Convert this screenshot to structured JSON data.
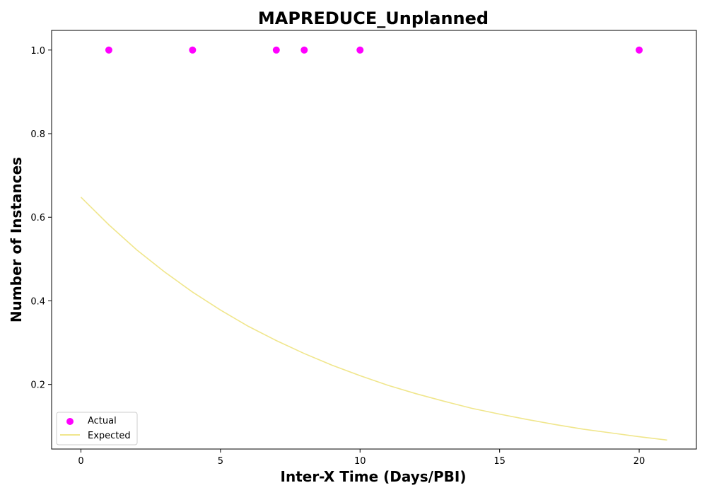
{
  "chart_data": {
    "type": "scatter",
    "title": "MAPREDUCE_Unplanned",
    "xlabel": "Inter-X Time (Days/PBI)",
    "ylabel": "Number of Instances",
    "xlim": [
      -1.05,
      22.05
    ],
    "ylim": [
      0.0455,
      1.047
    ],
    "xticks": [
      0,
      5,
      10,
      15,
      20
    ],
    "yticks": [
      0.2,
      0.4,
      0.6,
      0.8,
      1.0
    ],
    "xtick_labels": [
      "0",
      "5",
      "10",
      "15",
      "20"
    ],
    "ytick_labels": [
      "0.2",
      "0.4",
      "0.6",
      "0.8",
      "1.0"
    ],
    "grid": false,
    "legend": {
      "position": "lower-left",
      "entries": [
        "Actual",
        "Expected"
      ]
    },
    "series": [
      {
        "name": "Actual",
        "kind": "scatter",
        "color": "#ff00ff",
        "x": [
          1,
          4,
          7,
          8,
          10,
          20
        ],
        "y": [
          1.0,
          1.0,
          1.0,
          1.0,
          1.0,
          1.0
        ]
      },
      {
        "name": "Expected",
        "kind": "line",
        "color": "#f0e68c",
        "x": [
          0,
          1,
          2,
          3,
          4,
          5,
          6,
          7,
          8,
          9,
          10,
          11,
          12,
          13,
          14,
          15,
          16,
          17,
          18,
          19,
          20,
          21
        ],
        "y": [
          0.648,
          0.582,
          0.522,
          0.469,
          0.421,
          0.378,
          0.339,
          0.305,
          0.274,
          0.246,
          0.221,
          0.198,
          0.178,
          0.16,
          0.143,
          0.129,
          0.116,
          0.104,
          0.093,
          0.084,
          0.075,
          0.067
        ]
      }
    ]
  }
}
